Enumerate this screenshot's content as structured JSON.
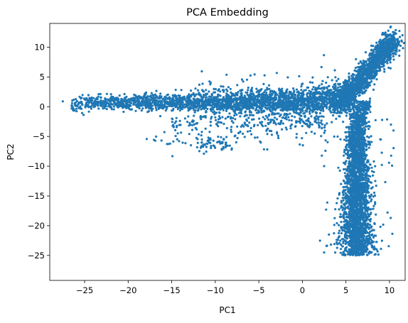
{
  "chart_data": {
    "type": "scatter",
    "title": "PCA Embedding",
    "xlabel": "PC1",
    "ylabel": "PC2",
    "xlim": [
      -29,
      11.8
    ],
    "ylim": [
      -29.2,
      14
    ],
    "x_ticks": [
      -25,
      -20,
      -15,
      -10,
      -5,
      0,
      5,
      10
    ],
    "y_ticks": [
      -25,
      -20,
      -15,
      -10,
      -5,
      0,
      5,
      10
    ],
    "grid": false,
    "color": "#1f77b4",
    "series": [
      {
        "clusters": [
          {
            "arm": "horizontal",
            "x_range": [
              -25,
              5
            ],
            "y_center": 0.7,
            "y_spread": 1.2
          },
          {
            "arm": "diagonal",
            "x_range": [
              5,
              10.5
            ],
            "y_range": [
              0,
              11.5
            ]
          },
          {
            "arm": "vertical",
            "x_center": 6.3,
            "x_spread": 1.2,
            "y_range": [
              -26.5,
              1
            ]
          },
          {
            "arm": "outliers",
            "x_range": [
              -27.5,
              11
            ],
            "y_range": [
              -10,
              6.5
            ]
          }
        ]
      }
    ]
  }
}
